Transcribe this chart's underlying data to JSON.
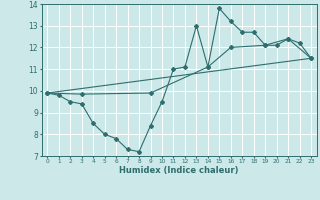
{
  "xlabel": "Humidex (Indice chaleur)",
  "bg_color": "#cce8e8",
  "grid_color": "#ffffff",
  "line_color": "#2e6e6e",
  "xlim": [
    -0.5,
    23.5
  ],
  "ylim": [
    7,
    14
  ],
  "yticks": [
    7,
    8,
    9,
    10,
    11,
    12,
    13,
    14
  ],
  "xticks": [
    0,
    1,
    2,
    3,
    4,
    5,
    6,
    7,
    8,
    9,
    10,
    11,
    12,
    13,
    14,
    15,
    16,
    17,
    18,
    19,
    20,
    21,
    22,
    23
  ],
  "line1_x": [
    0,
    1,
    2,
    3,
    4,
    5,
    6,
    7,
    8,
    9,
    10,
    11,
    12,
    13,
    14,
    15,
    16,
    17,
    18,
    19,
    20,
    21,
    22,
    23
  ],
  "line1_y": [
    9.9,
    9.8,
    9.5,
    9.4,
    8.5,
    8.0,
    7.8,
    7.3,
    7.2,
    8.4,
    9.5,
    11.0,
    11.1,
    13.0,
    11.1,
    13.8,
    13.2,
    12.7,
    12.7,
    12.1,
    12.1,
    12.4,
    12.2,
    11.5
  ],
  "line2_x": [
    0,
    3,
    9,
    14,
    16,
    19,
    21,
    23
  ],
  "line2_y": [
    9.9,
    9.85,
    9.9,
    11.1,
    12.0,
    12.1,
    12.4,
    11.5
  ],
  "line3_x": [
    0,
    23
  ],
  "line3_y": [
    9.9,
    11.5
  ]
}
